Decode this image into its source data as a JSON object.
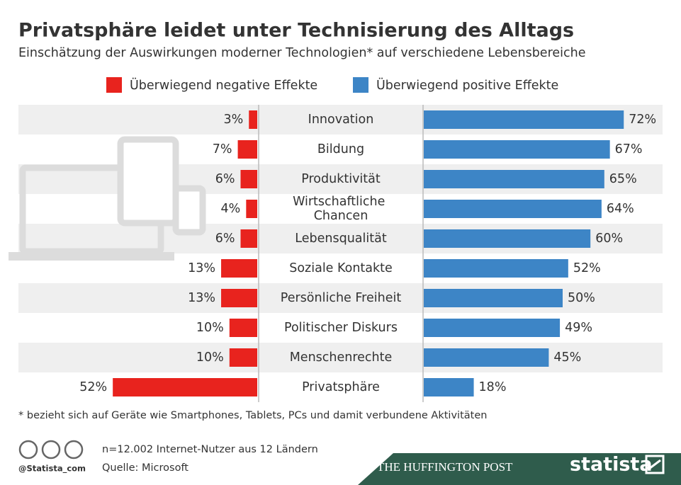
{
  "chart_data": {
    "type": "diverging-bar",
    "title": "Privatsphäre leidet unter Technisierung des Alltags",
    "subtitle": "Einschätzung der Auswirkungen moderner Technologien* auf verschiedene Lebensbereiche",
    "categories": [
      "Innovation",
      "Bildung",
      "Produktivität",
      "Wirtschaftliche Chancen",
      "Lebensqualität",
      "Soziale Kontakte",
      "Persönliche Freiheit",
      "Politischer Diskurs",
      "Menschenrechte",
      "Privatsphäre"
    ],
    "series": [
      {
        "name": "Überwiegend negative Effekte",
        "color": "#e8231e",
        "values": [
          3,
          7,
          6,
          4,
          6,
          13,
          13,
          10,
          10,
          52
        ],
        "value_labels": [
          "3%",
          "7%",
          "6%",
          "4%",
          "6%",
          "13%",
          "13%",
          "10%",
          "10%",
          "52%"
        ]
      },
      {
        "name": "Überwiegend positive Effekte",
        "color": "#3d85c6",
        "values": [
          72,
          67,
          65,
          64,
          60,
          52,
          50,
          49,
          45,
          18
        ],
        "value_labels": [
          "72%",
          "67%",
          "65%",
          "64%",
          "60%",
          "52%",
          "50%",
          "49%",
          "45%",
          "18%"
        ]
      }
    ],
    "footnote": "* bezieht sich auf Geräte wie Smartphones, Tablets, PCs und damit verbundene Aktivitäten",
    "note": "n=12.002 Internet-Nutzer aus 12 Ländern",
    "source": "Quelle: Microsoft",
    "credit": "@Statista_com",
    "partner": "THE HUFFINGTON POST",
    "brand": "statista"
  }
}
